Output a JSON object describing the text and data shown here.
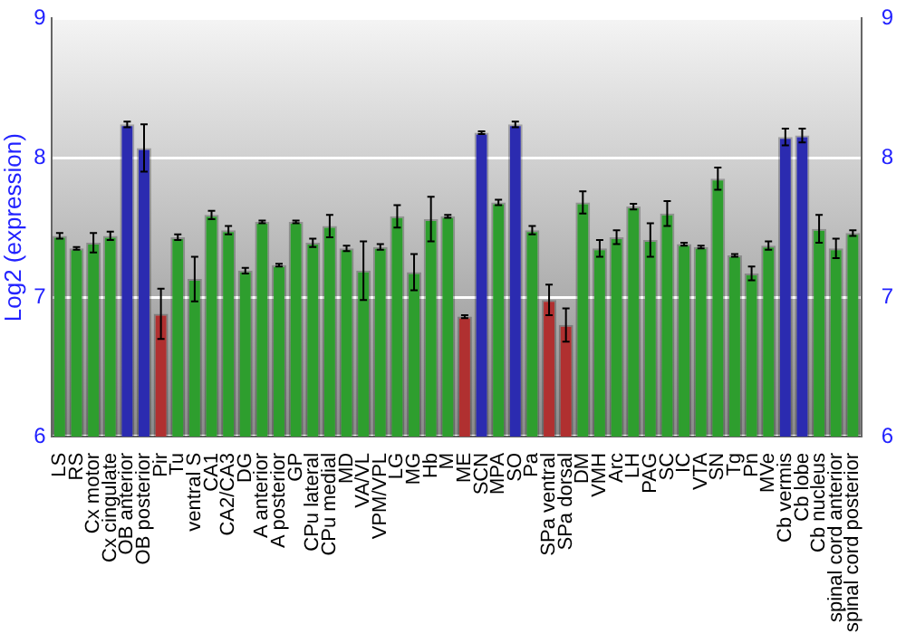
{
  "chart_data": {
    "type": "bar",
    "ylabel": "Log2 (expression)",
    "categories": [
      "LS",
      "RS",
      "Cx motor",
      "Cx cingulate",
      "OB anterior",
      "OB posterior",
      "Pir",
      "Tu",
      "ventral S",
      "CA1",
      "CA2/CA3",
      "DG",
      "A anterior",
      "A posterior",
      "GP",
      "CPu lateral",
      "CPu medial",
      "MD",
      "VA/VL",
      "VPM/VPL",
      "LG",
      "MG",
      "Hb",
      "M",
      "ME",
      "SCN",
      "MPA",
      "SO",
      "Pa",
      "SPa ventral",
      "SPa dorsal",
      "DM",
      "VMH",
      "Arc",
      "LH",
      "PAG",
      "SC",
      "IC",
      "VTA",
      "SN",
      "Tg",
      "Pn",
      "MVe",
      "Cb vermis",
      "Cb lobe",
      "Cb nucleus",
      "spinal cord anterior",
      "spinal cord posterior"
    ],
    "values": [
      7.44,
      7.35,
      7.39,
      7.44,
      8.24,
      8.07,
      6.88,
      7.43,
      7.13,
      7.59,
      7.48,
      7.19,
      7.54,
      7.23,
      7.54,
      7.39,
      7.51,
      7.35,
      7.19,
      7.36,
      7.58,
      7.18,
      7.56,
      7.58,
      6.86,
      8.18,
      7.68,
      8.24,
      7.48,
      6.98,
      6.8,
      7.68,
      7.35,
      7.43,
      7.65,
      7.41,
      7.6,
      7.38,
      7.36,
      7.85,
      7.3,
      7.17,
      7.37,
      8.15,
      8.16,
      7.49,
      7.35,
      7.46
    ],
    "errors": [
      0.02,
      0.01,
      0.07,
      0.03,
      0.02,
      0.17,
      0.18,
      0.02,
      0.16,
      0.03,
      0.03,
      0.02,
      0.01,
      0.01,
      0.01,
      0.03,
      0.08,
      0.02,
      0.21,
      0.02,
      0.08,
      0.13,
      0.16,
      0.01,
      0.01,
      0.01,
      0.02,
      0.02,
      0.03,
      0.11,
      0.12,
      0.08,
      0.06,
      0.05,
      0.02,
      0.12,
      0.09,
      0.01,
      0.01,
      0.08,
      0.01,
      0.05,
      0.03,
      0.06,
      0.05,
      0.1,
      0.07,
      0.02
    ],
    "colors": [
      "#2e9e2e",
      "#2e9e2e",
      "#2e9e2e",
      "#2e9e2e",
      "#2b2bb0",
      "#2b2bb0",
      "#b03030",
      "#2e9e2e",
      "#2e9e2e",
      "#2e9e2e",
      "#2e9e2e",
      "#2e9e2e",
      "#2e9e2e",
      "#2e9e2e",
      "#2e9e2e",
      "#2e9e2e",
      "#2e9e2e",
      "#2e9e2e",
      "#2e9e2e",
      "#2e9e2e",
      "#2e9e2e",
      "#2e9e2e",
      "#2e9e2e",
      "#2e9e2e",
      "#b03030",
      "#2b2bb0",
      "#2e9e2e",
      "#2b2bb0",
      "#2e9e2e",
      "#b03030",
      "#b03030",
      "#2e9e2e",
      "#2e9e2e",
      "#2e9e2e",
      "#2e9e2e",
      "#2e9e2e",
      "#2e9e2e",
      "#2e9e2e",
      "#2e9e2e",
      "#2e9e2e",
      "#2e9e2e",
      "#2e9e2e",
      "#2e9e2e",
      "#2b2bb0",
      "#2b2bb0",
      "#2e9e2e",
      "#2e9e2e",
      "#2e9e2e"
    ],
    "ylim": [
      6,
      9
    ],
    "yticks": [
      6,
      7,
      8,
      9
    ],
    "y2lim": [
      6,
      9
    ],
    "y2ticks": [
      6,
      7,
      8,
      9
    ],
    "grid": "y"
  }
}
